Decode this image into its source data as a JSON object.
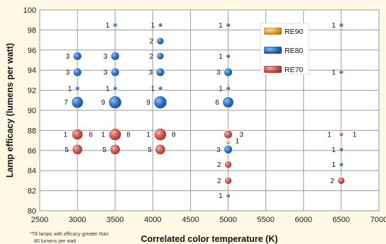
{
  "chart_data": {
    "type": "scatter",
    "title": "",
    "xlabel": "Correlated color temperature (K)",
    "ylabel": "Lamp efficacy (lumens per watt)",
    "xlim": [
      2500,
      7000
    ],
    "ylim": [
      80,
      100
    ],
    "x_ticks": [
      "2500",
      "3000",
      "3500",
      "4000",
      "4500",
      "5000",
      "5500",
      "6000",
      "6500",
      "7000"
    ],
    "y_ticks": [
      "80",
      "82",
      "84",
      "86",
      "88",
      "90",
      "92",
      "94",
      "96",
      "98",
      "100"
    ],
    "grid": true,
    "legend_position": "top-right",
    "footnote": "*T8 lamps with efficacy greater than 80 lumens per watt",
    "series": [
      {
        "name": "RE90",
        "color": "#e8a23a",
        "points": [
          {
            "x": 5000,
            "y": 86.8,
            "count": 1
          }
        ]
      },
      {
        "name": "RE80",
        "color": "#2f73c0",
        "points": [
          {
            "x": 3000,
            "y": 95.4,
            "count": 3
          },
          {
            "x": 3000,
            "y": 93.8,
            "count": 3
          },
          {
            "x": 3000,
            "y": 92.2,
            "count": 1
          },
          {
            "x": 3000,
            "y": 90.8,
            "count": 7
          },
          {
            "x": 3000,
            "y": 87.6,
            "count": 1
          },
          {
            "x": 3500,
            "y": 98.5,
            "count": 1
          },
          {
            "x": 3500,
            "y": 95.4,
            "count": 3
          },
          {
            "x": 3500,
            "y": 93.8,
            "count": 3
          },
          {
            "x": 3500,
            "y": 92.2,
            "count": 1
          },
          {
            "x": 3500,
            "y": 90.8,
            "count": 9
          },
          {
            "x": 3500,
            "y": 87.6,
            "count": 1
          },
          {
            "x": 4100,
            "y": 98.5,
            "count": 1
          },
          {
            "x": 4100,
            "y": 96.9,
            "count": 2
          },
          {
            "x": 4100,
            "y": 95.4,
            "count": 2
          },
          {
            "x": 4100,
            "y": 93.8,
            "count": 3
          },
          {
            "x": 4100,
            "y": 92.2,
            "count": 1
          },
          {
            "x": 4100,
            "y": 90.8,
            "count": 9
          },
          {
            "x": 4100,
            "y": 87.6,
            "count": 1
          },
          {
            "x": 5000,
            "y": 98.5,
            "count": 1
          },
          {
            "x": 5000,
            "y": 95.4,
            "count": 1
          },
          {
            "x": 5000,
            "y": 93.8,
            "count": 3
          },
          {
            "x": 5000,
            "y": 92.2,
            "count": 1
          },
          {
            "x": 5000,
            "y": 90.8,
            "count": 6
          },
          {
            "x": 5000,
            "y": 86.1,
            "count": 3
          },
          {
            "x": 6500,
            "y": 98.5,
            "count": 1
          },
          {
            "x": 6500,
            "y": 93.8,
            "count": 1
          },
          {
            "x": 6500,
            "y": 87.6,
            "count": 1
          },
          {
            "x": 6500,
            "y": 86.1,
            "count": 1
          },
          {
            "x": 6500,
            "y": 84.6,
            "count": 1
          }
        ]
      },
      {
        "name": "RE70",
        "color": "#c8574f",
        "points": [
          {
            "x": 3000,
            "y": 87.6,
            "count": 6
          },
          {
            "x": 3000,
            "y": 86.1,
            "count": 5
          },
          {
            "x": 3500,
            "y": 87.6,
            "count": 8
          },
          {
            "x": 3500,
            "y": 86.1,
            "count": 5
          },
          {
            "x": 4100,
            "y": 87.6,
            "count": 8
          },
          {
            "x": 4100,
            "y": 86.1,
            "count": 5
          },
          {
            "x": 5000,
            "y": 87.6,
            "count": 3
          },
          {
            "x": 5000,
            "y": 84.6,
            "count": 2
          },
          {
            "x": 5000,
            "y": 83.0,
            "count": 2
          },
          {
            "x": 5000,
            "y": 81.5,
            "count": 1
          },
          {
            "x": 6500,
            "y": 87.6,
            "count": 1
          },
          {
            "x": 6500,
            "y": 83.0,
            "count": 2
          }
        ]
      }
    ]
  }
}
